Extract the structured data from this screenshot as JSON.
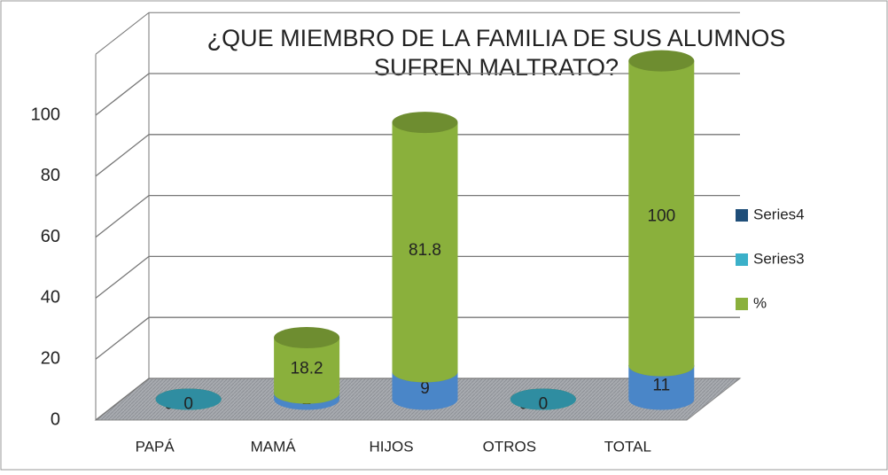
{
  "chart_data": {
    "type": "bar3d-cylinder-stacked",
    "title": [
      "¿QUE MIEMBRO DE LA  FAMILIA DE SUS ALUMNOS",
      "SUFREN MALTRATO?"
    ],
    "categories": [
      "PAPÁ",
      "MAMÁ",
      "HIJOS",
      "OTROS",
      "TOTAL"
    ],
    "series": [
      {
        "color": "#4a86c8",
        "values": [
          0,
          2,
          9,
          0,
          11
        ]
      },
      {
        "name": "%",
        "color": "#8ab03c",
        "values": [
          0,
          18.2,
          81.8,
          0,
          100
        ]
      },
      {
        "name": "Series3",
        "color": "#3bb0c9",
        "values": [
          0,
          null,
          null,
          0,
          null
        ]
      },
      {
        "name": "Series4",
        "color": "#1f4e79",
        "values": [
          null,
          null,
          null,
          null,
          null
        ]
      }
    ],
    "ylim": [
      0,
      120
    ],
    "yticks": [
      0,
      20,
      40,
      60,
      80,
      100
    ],
    "grid": true,
    "legend": "right"
  }
}
